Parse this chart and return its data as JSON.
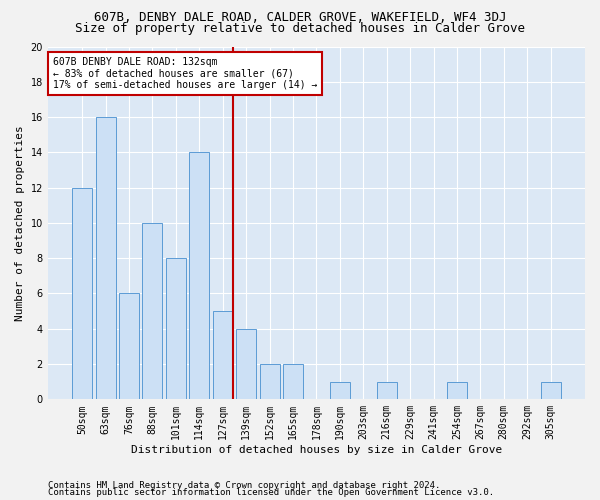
{
  "title": "607B, DENBY DALE ROAD, CALDER GROVE, WAKEFIELD, WF4 3DJ",
  "subtitle": "Size of property relative to detached houses in Calder Grove",
  "xlabel": "Distribution of detached houses by size in Calder Grove",
  "ylabel": "Number of detached properties",
  "categories": [
    "50sqm",
    "63sqm",
    "76sqm",
    "88sqm",
    "101sqm",
    "114sqm",
    "127sqm",
    "139sqm",
    "152sqm",
    "165sqm",
    "178sqm",
    "190sqm",
    "203sqm",
    "216sqm",
    "229sqm",
    "241sqm",
    "254sqm",
    "267sqm",
    "280sqm",
    "292sqm",
    "305sqm"
  ],
  "values": [
    12,
    16,
    6,
    10,
    8,
    14,
    5,
    4,
    2,
    2,
    0,
    1,
    0,
    1,
    0,
    0,
    1,
    0,
    0,
    0,
    1
  ],
  "bar_color": "#cce0f5",
  "bar_edge_color": "#5b9bd5",
  "vline_index": 6,
  "vline_color": "#c00000",
  "annotation_line1": "607B DENBY DALE ROAD: 132sqm",
  "annotation_line2": "← 83% of detached houses are smaller (67)",
  "annotation_line3": "17% of semi-detached houses are larger (14) →",
  "annotation_box_color": "#c00000",
  "ylim": [
    0,
    20
  ],
  "yticks": [
    0,
    2,
    4,
    6,
    8,
    10,
    12,
    14,
    16,
    18,
    20
  ],
  "footer1": "Contains HM Land Registry data © Crown copyright and database right 2024.",
  "footer2": "Contains public sector information licensed under the Open Government Licence v3.0.",
  "background_color": "#dce8f5",
  "grid_color": "#ffffff",
  "fig_background": "#f2f2f2",
  "title_fontsize": 9,
  "subtitle_fontsize": 9,
  "axis_label_fontsize": 8,
  "tick_fontsize": 7,
  "annotation_fontsize": 7,
  "footer_fontsize": 6.5
}
